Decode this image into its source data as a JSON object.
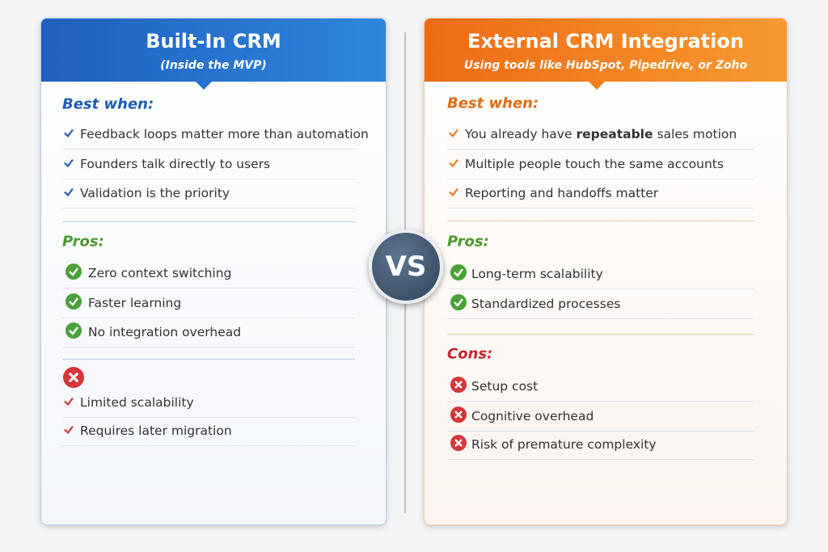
{
  "left": {
    "title": "Built-In CRM",
    "subtitle": "(Inside the MVP)",
    "sections": [
      {
        "label": "Best when:",
        "items": [
          "Feedback loops matter more than automation",
          "Founders talk directly to users",
          "Validation is the priority"
        ]
      },
      {
        "label": "Pros:",
        "items": [
          "Zero context switching",
          "Faster learning",
          "No integration overhead"
        ]
      },
      {
        "items": [
          "Limited scalability",
          "Requires later migration"
        ]
      }
    ]
  },
  "vs": "VS",
  "right": {
    "title": "External CRM Integration",
    "subtitle": "Using tools like HubSpot, Pipedrive, or Zoho",
    "sections": [
      {
        "label": "Best when:",
        "items": [
          {
            "before": "You already have",
            "bold": "repeatable",
            "after": "sales motion"
          },
          "Multiple people touch the same accounts",
          "Reporting and handoffs matter"
        ]
      },
      {
        "label": "Pros:",
        "items": [
          "Long-term scalability",
          "Standardized processes"
        ]
      },
      {
        "label": "Cons:",
        "items": [
          "Setup cost",
          "Cognitive overhead",
          "Risk of premature complexity"
        ]
      }
    ]
  }
}
